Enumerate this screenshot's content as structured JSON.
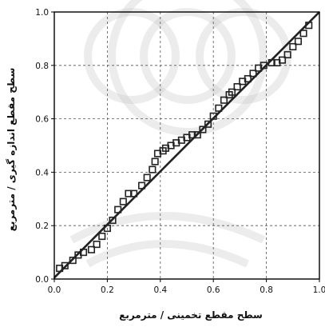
{
  "chart_data": {
    "type": "scatter",
    "title": "",
    "xlabel": "سطح مقطع تخمینی / مترمربع",
    "ylabel": "سطح مقطع اندازه گیری / مترمربع",
    "xlim": [
      0,
      1
    ],
    "ylim": [
      0,
      1
    ],
    "x_ticks": [
      "0.0",
      "0.2",
      "0.4",
      "0.6",
      "0.8",
      "1.0"
    ],
    "y_ticks": [
      "0.0",
      "0.2",
      "0.4",
      "0.6",
      "0.8",
      "1.0"
    ],
    "grid": true,
    "legend": "none",
    "series": [
      {
        "kind": "scatter",
        "marker": "square",
        "x": [
          0.02,
          0.04,
          0.07,
          0.09,
          0.11,
          0.14,
          0.16,
          0.18,
          0.2,
          0.22,
          0.24,
          0.26,
          0.28,
          0.3,
          0.33,
          0.35,
          0.37,
          0.38,
          0.39,
          0.41,
          0.42,
          0.44,
          0.46,
          0.48,
          0.5,
          0.52,
          0.54,
          0.56,
          0.58,
          0.6,
          0.62,
          0.64,
          0.66,
          0.67,
          0.69,
          0.71,
          0.73,
          0.75,
          0.77,
          0.79,
          0.82,
          0.84,
          0.86,
          0.88,
          0.9,
          0.92,
          0.94,
          0.96
        ],
        "y": [
          0.04,
          0.05,
          0.07,
          0.09,
          0.1,
          0.11,
          0.13,
          0.16,
          0.19,
          0.22,
          0.26,
          0.29,
          0.32,
          0.32,
          0.35,
          0.38,
          0.41,
          0.44,
          0.47,
          0.48,
          0.49,
          0.5,
          0.51,
          0.52,
          0.53,
          0.54,
          0.54,
          0.56,
          0.58,
          0.61,
          0.64,
          0.67,
          0.69,
          0.7,
          0.72,
          0.74,
          0.75,
          0.77,
          0.79,
          0.8,
          0.81,
          0.81,
          0.82,
          0.84,
          0.87,
          0.89,
          0.92,
          0.95
        ]
      },
      {
        "kind": "line",
        "x": [
          0,
          1
        ],
        "y": [
          0.005,
          1.0
        ]
      }
    ],
    "colors": {
      "markers": "#222222",
      "line": "#222222",
      "grid": "#555555",
      "frame": "#000000"
    }
  }
}
